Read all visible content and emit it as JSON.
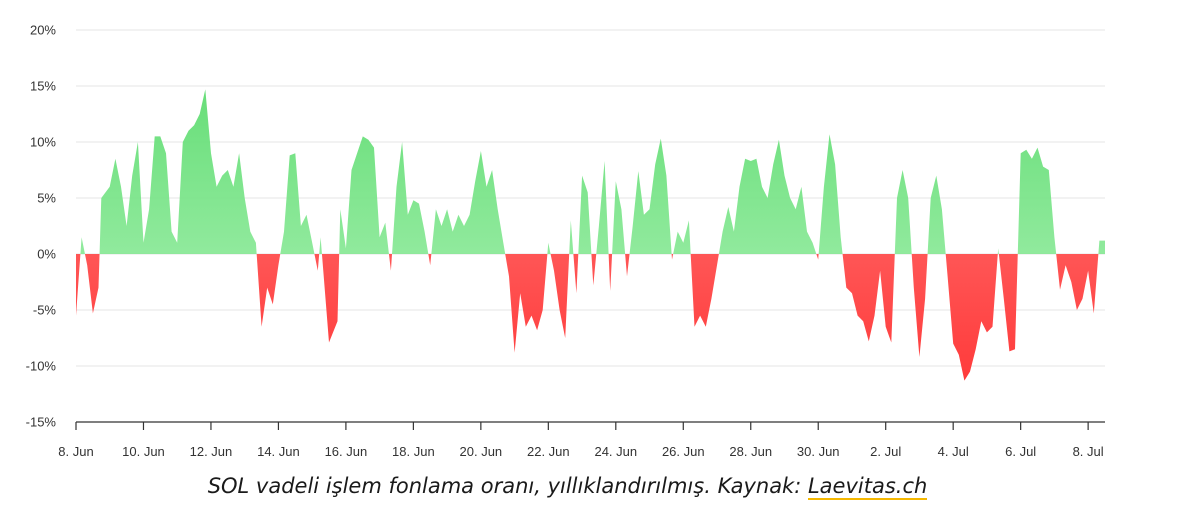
{
  "caption": {
    "text": "SOL vadeli işlem fonlama oranı, yıllıklandırılmış. Kaynak: ",
    "link": "Laevitas.ch"
  },
  "colors": {
    "positive": "#6be07c",
    "negative": "#ff4d4d",
    "grid": "#e6e6e6",
    "axis": "#333333"
  },
  "chart_data": {
    "type": "area",
    "title": "",
    "xlabel": "",
    "ylabel": "",
    "ylim": [
      -15,
      20
    ],
    "yticks": [
      {
        "value": 20,
        "label": "20%"
      },
      {
        "value": 15,
        "label": "15%"
      },
      {
        "value": 10,
        "label": "10%"
      },
      {
        "value": 5,
        "label": "5%"
      },
      {
        "value": 0,
        "label": "0%"
      },
      {
        "value": -5,
        "label": "-5%"
      },
      {
        "value": -10,
        "label": "-10%"
      },
      {
        "value": -15,
        "label": "-15%"
      }
    ],
    "xlim": [
      "2024-06-08",
      "2024-07-08T12:00"
    ],
    "xticks": [
      {
        "date": "2024-06-08",
        "label": "8. Jun"
      },
      {
        "date": "2024-06-10",
        "label": "10. Jun"
      },
      {
        "date": "2024-06-12",
        "label": "12. Jun"
      },
      {
        "date": "2024-06-14",
        "label": "14. Jun"
      },
      {
        "date": "2024-06-16",
        "label": "16. Jun"
      },
      {
        "date": "2024-06-18",
        "label": "18. Jun"
      },
      {
        "date": "2024-06-20",
        "label": "20. Jun"
      },
      {
        "date": "2024-06-22",
        "label": "22. Jun"
      },
      {
        "date": "2024-06-24",
        "label": "24. Jun"
      },
      {
        "date": "2024-06-26",
        "label": "26. Jun"
      },
      {
        "date": "2024-06-28",
        "label": "28. Jun"
      },
      {
        "date": "2024-06-30",
        "label": "30. Jun"
      },
      {
        "date": "2024-07-02",
        "label": "2. Jul"
      },
      {
        "date": "2024-07-04",
        "label": "4. Jul"
      },
      {
        "date": "2024-07-06",
        "label": "6. Jul"
      },
      {
        "date": "2024-07-08",
        "label": "8. Jul"
      }
    ],
    "grid": true,
    "legend": "none",
    "series": [
      {
        "points": [
          [
            "2024-06-08T00:00",
            -5.5
          ],
          [
            "2024-06-08T04:00",
            1.5
          ],
          [
            "2024-06-08T08:00",
            -1
          ],
          [
            "2024-06-08T12:00",
            -5.3
          ],
          [
            "2024-06-08T16:00",
            -3
          ],
          [
            "2024-06-08T18:00",
            5
          ],
          [
            "2024-06-09T00:00",
            6
          ],
          [
            "2024-06-09T04:00",
            8.5
          ],
          [
            "2024-06-09T08:00",
            6
          ],
          [
            "2024-06-09T12:00",
            2.5
          ],
          [
            "2024-06-09T16:00",
            7
          ],
          [
            "2024-06-09T20:00",
            10
          ],
          [
            "2024-06-10T00:00",
            1
          ],
          [
            "2024-06-10T04:00",
            4
          ],
          [
            "2024-06-10T08:00",
            10.5
          ],
          [
            "2024-06-10T12:00",
            10.5
          ],
          [
            "2024-06-10T16:00",
            9
          ],
          [
            "2024-06-10T20:00",
            2
          ],
          [
            "2024-06-11T00:00",
            1
          ],
          [
            "2024-06-11T04:00",
            10
          ],
          [
            "2024-06-11T08:00",
            11
          ],
          [
            "2024-06-11T12:00",
            11.5
          ],
          [
            "2024-06-11T16:00",
            12.5
          ],
          [
            "2024-06-11T20:00",
            14.7
          ],
          [
            "2024-06-12T00:00",
            9
          ],
          [
            "2024-06-12T04:00",
            6
          ],
          [
            "2024-06-12T08:00",
            7
          ],
          [
            "2024-06-12T12:00",
            7.5
          ],
          [
            "2024-06-12T16:00",
            6
          ],
          [
            "2024-06-12T20:00",
            9
          ],
          [
            "2024-06-13T00:00",
            5
          ],
          [
            "2024-06-13T04:00",
            2
          ],
          [
            "2024-06-13T08:00",
            1
          ],
          [
            "2024-06-13T12:00",
            -6.5
          ],
          [
            "2024-06-13T16:00",
            -3
          ],
          [
            "2024-06-13T20:00",
            -4.5
          ],
          [
            "2024-06-14T00:00",
            -1
          ],
          [
            "2024-06-14T04:00",
            2
          ],
          [
            "2024-06-14T08:00",
            8.8
          ],
          [
            "2024-06-14T12:00",
            9
          ],
          [
            "2024-06-14T16:00",
            2.5
          ],
          [
            "2024-06-14T20:00",
            3.5
          ],
          [
            "2024-06-15T00:00",
            1
          ],
          [
            "2024-06-15T04:00",
            -1.5
          ],
          [
            "2024-06-15T06:00",
            1.5
          ],
          [
            "2024-06-15T12:00",
            -7.9
          ],
          [
            "2024-06-15T18:00",
            -6
          ],
          [
            "2024-06-15T20:00",
            4
          ],
          [
            "2024-06-16T00:00",
            0.5
          ],
          [
            "2024-06-16T04:00",
            7.5
          ],
          [
            "2024-06-16T08:00",
            9
          ],
          [
            "2024-06-16T12:00",
            10.5
          ],
          [
            "2024-06-16T16:00",
            10.2
          ],
          [
            "2024-06-16T20:00",
            9.5
          ],
          [
            "2024-06-17T00:00",
            1.5
          ],
          [
            "2024-06-17T04:00",
            2.8
          ],
          [
            "2024-06-17T08:00",
            -1.5
          ],
          [
            "2024-06-17T12:00",
            6
          ],
          [
            "2024-06-17T16:00",
            10
          ],
          [
            "2024-06-17T20:00",
            3.5
          ],
          [
            "2024-06-18T00:00",
            4.8
          ],
          [
            "2024-06-18T04:00",
            4.5
          ],
          [
            "2024-06-18T08:00",
            2
          ],
          [
            "2024-06-18T12:00",
            -1
          ],
          [
            "2024-06-18T16:00",
            4
          ],
          [
            "2024-06-18T20:00",
            2.5
          ],
          [
            "2024-06-19T00:00",
            4
          ],
          [
            "2024-06-19T04:00",
            2
          ],
          [
            "2024-06-19T08:00",
            3.5
          ],
          [
            "2024-06-19T12:00",
            2.5
          ],
          [
            "2024-06-19T16:00",
            3.5
          ],
          [
            "2024-06-19T20:00",
            6.5
          ],
          [
            "2024-06-20T00:00",
            9.2
          ],
          [
            "2024-06-20T04:00",
            6
          ],
          [
            "2024-06-20T08:00",
            7.5
          ],
          [
            "2024-06-20T12:00",
            4
          ],
          [
            "2024-06-20T16:00",
            1
          ],
          [
            "2024-06-20T20:00",
            -2
          ],
          [
            "2024-06-21T00:00",
            -8.8
          ],
          [
            "2024-06-21T04:00",
            -3.5
          ],
          [
            "2024-06-21T08:00",
            -6.5
          ],
          [
            "2024-06-21T12:00",
            -5.5
          ],
          [
            "2024-06-21T16:00",
            -6.8
          ],
          [
            "2024-06-21T20:00",
            -5
          ],
          [
            "2024-06-22T00:00",
            1
          ],
          [
            "2024-06-22T04:00",
            -1.5
          ],
          [
            "2024-06-22T08:00",
            -5
          ],
          [
            "2024-06-22T12:00",
            -7.5
          ],
          [
            "2024-06-22T16:00",
            3
          ],
          [
            "2024-06-22T20:00",
            -3.5
          ],
          [
            "2024-06-23T00:00",
            7
          ],
          [
            "2024-06-23T04:00",
            5.5
          ],
          [
            "2024-06-23T08:00",
            -2.8
          ],
          [
            "2024-06-23T12:00",
            2.5
          ],
          [
            "2024-06-23T16:00",
            8.3
          ],
          [
            "2024-06-23T20:00",
            -3.3
          ],
          [
            "2024-06-24T00:00",
            6.5
          ],
          [
            "2024-06-24T04:00",
            4
          ],
          [
            "2024-06-24T08:00",
            -2
          ],
          [
            "2024-06-24T12:00",
            2.5
          ],
          [
            "2024-06-24T16:00",
            7.4
          ],
          [
            "2024-06-24T20:00",
            3.5
          ],
          [
            "2024-06-25T00:00",
            4
          ],
          [
            "2024-06-25T04:00",
            8
          ],
          [
            "2024-06-25T08:00",
            10.3
          ],
          [
            "2024-06-25T12:00",
            7
          ],
          [
            "2024-06-25T16:00",
            -0.5
          ],
          [
            "2024-06-25T20:00",
            2
          ],
          [
            "2024-06-26T00:00",
            1
          ],
          [
            "2024-06-26T04:00",
            3
          ],
          [
            "2024-06-26T08:00",
            -6.5
          ],
          [
            "2024-06-26T12:00",
            -5.5
          ],
          [
            "2024-06-26T16:00",
            -6.5
          ],
          [
            "2024-06-26T20:00",
            -4
          ],
          [
            "2024-06-27T00:00",
            -1
          ],
          [
            "2024-06-27T04:00",
            2
          ],
          [
            "2024-06-27T08:00",
            4.2
          ],
          [
            "2024-06-27T12:00",
            2
          ],
          [
            "2024-06-27T16:00",
            6
          ],
          [
            "2024-06-27T20:00",
            8.5
          ],
          [
            "2024-06-28T00:00",
            8.3
          ],
          [
            "2024-06-28T04:00",
            8.5
          ],
          [
            "2024-06-28T08:00",
            6
          ],
          [
            "2024-06-28T12:00",
            5
          ],
          [
            "2024-06-28T16:00",
            8
          ],
          [
            "2024-06-28T20:00",
            10.2
          ],
          [
            "2024-06-29T00:00",
            7
          ],
          [
            "2024-06-29T04:00",
            5
          ],
          [
            "2024-06-29T08:00",
            4
          ],
          [
            "2024-06-29T12:00",
            6
          ],
          [
            "2024-06-29T16:00",
            2
          ],
          [
            "2024-06-29T20:00",
            1
          ],
          [
            "2024-06-30T00:00",
            -0.5
          ],
          [
            "2024-06-30T04:00",
            6
          ],
          [
            "2024-06-30T08:00",
            10.7
          ],
          [
            "2024-06-30T12:00",
            8
          ],
          [
            "2024-06-30T16:00",
            1.5
          ],
          [
            "2024-06-30T20:00",
            -3
          ],
          [
            "2024-07-01T00:00",
            -3.5
          ],
          [
            "2024-07-01T04:00",
            -5.5
          ],
          [
            "2024-07-01T08:00",
            -6
          ],
          [
            "2024-07-01T12:00",
            -7.8
          ],
          [
            "2024-07-01T16:00",
            -5.5
          ],
          [
            "2024-07-01T20:00",
            -1.5
          ],
          [
            "2024-07-02T00:00",
            -6.5
          ],
          [
            "2024-07-02T04:00",
            -7.9
          ],
          [
            "2024-07-02T08:00",
            5
          ],
          [
            "2024-07-02T12:00",
            7.5
          ],
          [
            "2024-07-02T16:00",
            5
          ],
          [
            "2024-07-02T20:00",
            -3
          ],
          [
            "2024-07-03T00:00",
            -9.2
          ],
          [
            "2024-07-03T04:00",
            -4
          ],
          [
            "2024-07-03T08:00",
            5
          ],
          [
            "2024-07-03T12:00",
            7
          ],
          [
            "2024-07-03T16:00",
            4
          ],
          [
            "2024-07-03T20:00",
            -2
          ],
          [
            "2024-07-04T00:00",
            -8
          ],
          [
            "2024-07-04T04:00",
            -9
          ],
          [
            "2024-07-04T08:00",
            -11.3
          ],
          [
            "2024-07-04T12:00",
            -10.5
          ],
          [
            "2024-07-04T16:00",
            -8.5
          ],
          [
            "2024-07-04T20:00",
            -6
          ],
          [
            "2024-07-05T00:00",
            -7
          ],
          [
            "2024-07-05T04:00",
            -6.5
          ],
          [
            "2024-07-05T08:00",
            0.5
          ],
          [
            "2024-07-05T12:00",
            -4
          ],
          [
            "2024-07-05T16:00",
            -8.7
          ],
          [
            "2024-07-05T20:00",
            -8.5
          ],
          [
            "2024-07-06T00:00",
            9
          ],
          [
            "2024-07-06T04:00",
            9.3
          ],
          [
            "2024-07-06T08:00",
            8.5
          ],
          [
            "2024-07-06T12:00",
            9.5
          ],
          [
            "2024-07-06T16:00",
            7.8
          ],
          [
            "2024-07-06T20:00",
            7.5
          ],
          [
            "2024-07-07T00:00",
            1.5
          ],
          [
            "2024-07-07T04:00",
            -3.2
          ],
          [
            "2024-07-07T08:00",
            -1
          ],
          [
            "2024-07-07T12:00",
            -2.5
          ],
          [
            "2024-07-07T16:00",
            -5
          ],
          [
            "2024-07-07T20:00",
            -4
          ],
          [
            "2024-07-08T00:00",
            -1.5
          ],
          [
            "2024-07-08T04:00",
            -5.3
          ],
          [
            "2024-07-08T08:00",
            1.2
          ],
          [
            "2024-07-08T12:00",
            1.2
          ]
        ]
      }
    ]
  }
}
